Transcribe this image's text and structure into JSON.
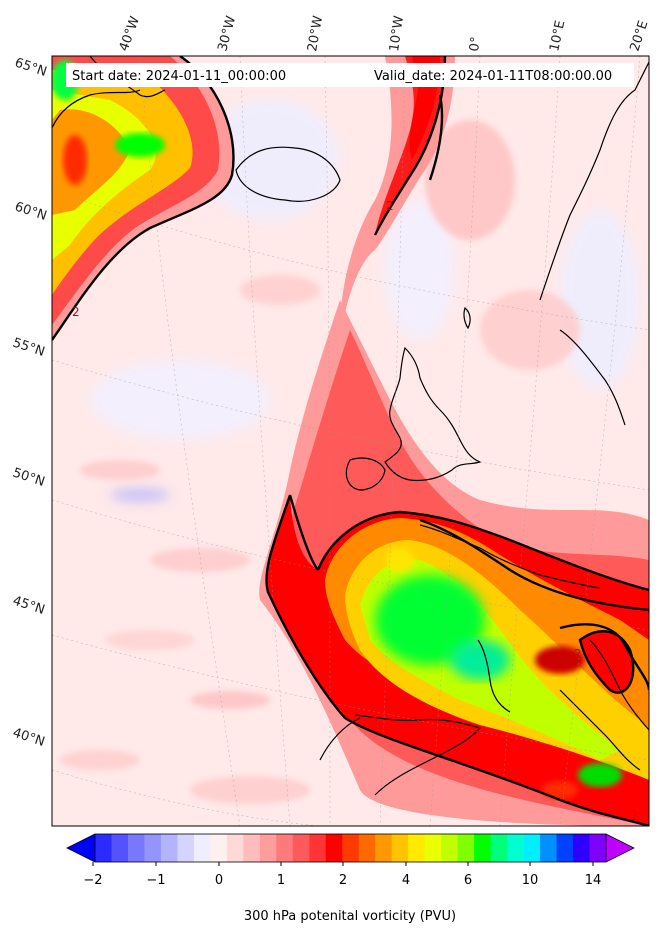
{
  "header": {
    "start_date": "Start date: 2024-01-11_00:00:00",
    "valid_date": "Valid_date: 2024-01-11T08:00:00.00"
  },
  "longitude_labels": [
    "40°W",
    "30°W",
    "20°W",
    "10°W",
    "0°",
    "10°E",
    "20°E"
  ],
  "latitude_labels": [
    "65°N",
    "60°N",
    "55°N",
    "50°N",
    "45°N",
    "40°N"
  ],
  "contour_label": "2",
  "colorbar": {
    "title": "300 hPa potenital vorticity (PVU)",
    "tick_labels": [
      "−2",
      "−1",
      "0",
      "1",
      "2",
      "4",
      "6",
      "10",
      "14"
    ],
    "colors": [
      "#0000ff",
      "#2b2bff",
      "#5252ff",
      "#7777ff",
      "#9494ff",
      "#b3b3ff",
      "#d4d4ff",
      "#eeeeff",
      "#fff0f0",
      "#ffd8d8",
      "#ffbcbc",
      "#ff9c9c",
      "#ff7a7a",
      "#ff5a5a",
      "#ff3535",
      "#ff0000",
      "#ff3a00",
      "#ff6a00",
      "#ff9800",
      "#ffc400",
      "#ffea00",
      "#eaff00",
      "#bfff00",
      "#7fff00",
      "#00ff00",
      "#00ff7a",
      "#00ffd0",
      "#00eeff",
      "#0090ff",
      "#0040ff",
      "#3000ff",
      "#8000ff",
      "#c000ff"
    ]
  }
}
